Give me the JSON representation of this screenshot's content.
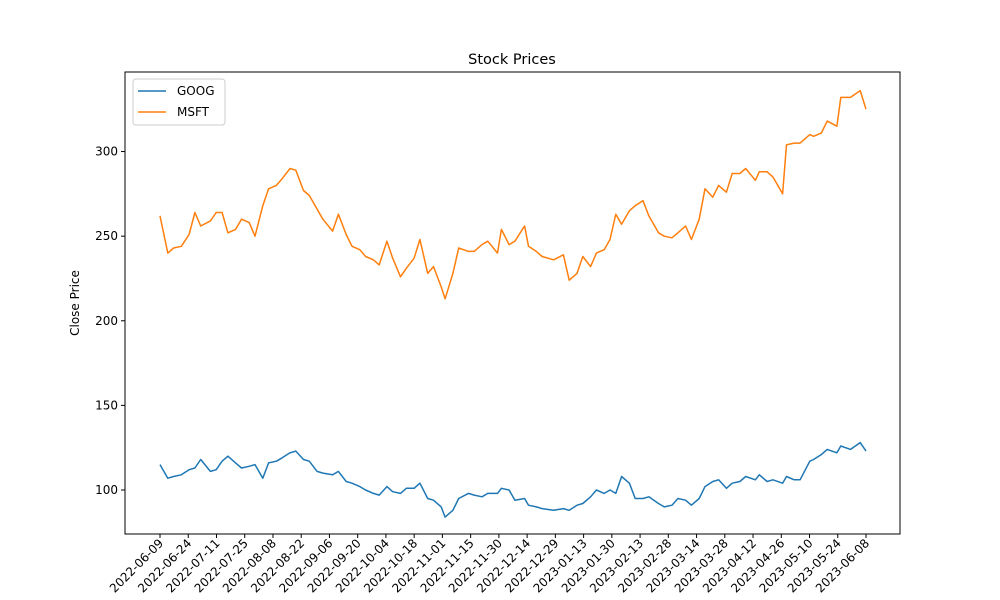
{
  "chart_data": {
    "type": "line",
    "title": "Stock Prices",
    "xlabel": "",
    "ylabel": "Close Price",
    "ylim": [
      74,
      347
    ],
    "yticks": [
      100,
      150,
      200,
      250,
      300
    ],
    "xtick_labels": [
      "2022-06-09",
      "2022-06-24",
      "2022-07-11",
      "2022-07-25",
      "2022-08-08",
      "2022-08-22",
      "2022-09-06",
      "2022-09-20",
      "2022-10-04",
      "2022-10-18",
      "2022-11-01",
      "2022-11-15",
      "2022-11-30",
      "2022-12-14",
      "2022-12-29",
      "2023-01-13",
      "2023-01-30",
      "2023-02-13",
      "2023-02-28",
      "2023-03-14",
      "2023-03-28",
      "2023-04-12",
      "2023-04-26",
      "2023-05-10",
      "2023-05-24",
      "2023-06-08"
    ],
    "legend": "top-left",
    "grid": false,
    "x_label_rotation": 45,
    "series": [
      {
        "name": "GOOG",
        "color": "#1f77b4",
        "values": [
          {
            "x": "2022-06-09",
            "y": 115
          },
          {
            "x": "2022-06-13",
            "y": 107
          },
          {
            "x": "2022-06-16",
            "y": 108
          },
          {
            "x": "2022-06-20",
            "y": 109
          },
          {
            "x": "2022-06-24",
            "y": 112
          },
          {
            "x": "2022-06-27",
            "y": 113
          },
          {
            "x": "2022-06-30",
            "y": 118
          },
          {
            "x": "2022-07-05",
            "y": 111
          },
          {
            "x": "2022-07-08",
            "y": 112
          },
          {
            "x": "2022-07-11",
            "y": 117
          },
          {
            "x": "2022-07-14",
            "y": 120
          },
          {
            "x": "2022-07-18",
            "y": 116
          },
          {
            "x": "2022-07-21",
            "y": 113
          },
          {
            "x": "2022-07-25",
            "y": 114
          },
          {
            "x": "2022-07-28",
            "y": 115
          },
          {
            "x": "2022-08-01",
            "y": 107
          },
          {
            "x": "2022-08-04",
            "y": 116
          },
          {
            "x": "2022-08-08",
            "y": 117
          },
          {
            "x": "2022-08-11",
            "y": 119
          },
          {
            "x": "2022-08-15",
            "y": 122
          },
          {
            "x": "2022-08-18",
            "y": 123
          },
          {
            "x": "2022-08-22",
            "y": 118
          },
          {
            "x": "2022-08-25",
            "y": 117
          },
          {
            "x": "2022-08-29",
            "y": 111
          },
          {
            "x": "2022-09-01",
            "y": 110
          },
          {
            "x": "2022-09-06",
            "y": 109
          },
          {
            "x": "2022-09-09",
            "y": 111
          },
          {
            "x": "2022-09-13",
            "y": 105
          },
          {
            "x": "2022-09-16",
            "y": 104
          },
          {
            "x": "2022-09-20",
            "y": 102
          },
          {
            "x": "2022-09-23",
            "y": 100
          },
          {
            "x": "2022-09-27",
            "y": 98
          },
          {
            "x": "2022-09-30",
            "y": 97
          },
          {
            "x": "2022-10-04",
            "y": 102
          },
          {
            "x": "2022-10-07",
            "y": 99
          },
          {
            "x": "2022-10-11",
            "y": 98
          },
          {
            "x": "2022-10-14",
            "y": 101
          },
          {
            "x": "2022-10-18",
            "y": 101
          },
          {
            "x": "2022-10-21",
            "y": 104
          },
          {
            "x": "2022-10-25",
            "y": 95
          },
          {
            "x": "2022-10-28",
            "y": 94
          },
          {
            "x": "2022-11-01",
            "y": 90
          },
          {
            "x": "2022-11-03",
            "y": 84
          },
          {
            "x": "2022-11-07",
            "y": 88
          },
          {
            "x": "2022-11-10",
            "y": 95
          },
          {
            "x": "2022-11-15",
            "y": 98
          },
          {
            "x": "2022-11-18",
            "y": 97
          },
          {
            "x": "2022-11-22",
            "y": 96
          },
          {
            "x": "2022-11-25",
            "y": 98
          },
          {
            "x": "2022-11-30",
            "y": 98
          },
          {
            "x": "2022-12-02",
            "y": 101
          },
          {
            "x": "2022-12-06",
            "y": 100
          },
          {
            "x": "2022-12-09",
            "y": 94
          },
          {
            "x": "2022-12-14",
            "y": 95
          },
          {
            "x": "2022-12-16",
            "y": 91
          },
          {
            "x": "2022-12-20",
            "y": 90
          },
          {
            "x": "2022-12-23",
            "y": 89
          },
          {
            "x": "2022-12-29",
            "y": 88
          },
          {
            "x": "2023-01-03",
            "y": 89
          },
          {
            "x": "2023-01-06",
            "y": 88
          },
          {
            "x": "2023-01-10",
            "y": 91
          },
          {
            "x": "2023-01-13",
            "y": 92
          },
          {
            "x": "2023-01-17",
            "y": 96
          },
          {
            "x": "2023-01-20",
            "y": 100
          },
          {
            "x": "2023-01-24",
            "y": 98
          },
          {
            "x": "2023-01-27",
            "y": 100
          },
          {
            "x": "2023-01-30",
            "y": 98
          },
          {
            "x": "2023-02-02",
            "y": 108
          },
          {
            "x": "2023-02-06",
            "y": 104
          },
          {
            "x": "2023-02-09",
            "y": 95
          },
          {
            "x": "2023-02-13",
            "y": 95
          },
          {
            "x": "2023-02-16",
            "y": 96
          },
          {
            "x": "2023-02-21",
            "y": 92
          },
          {
            "x": "2023-02-24",
            "y": 90
          },
          {
            "x": "2023-02-28",
            "y": 91
          },
          {
            "x": "2023-03-03",
            "y": 95
          },
          {
            "x": "2023-03-07",
            "y": 94
          },
          {
            "x": "2023-03-10",
            "y": 91
          },
          {
            "x": "2023-03-14",
            "y": 95
          },
          {
            "x": "2023-03-17",
            "y": 102
          },
          {
            "x": "2023-03-21",
            "y": 105
          },
          {
            "x": "2023-03-24",
            "y": 106
          },
          {
            "x": "2023-03-28",
            "y": 101
          },
          {
            "x": "2023-03-31",
            "y": 104
          },
          {
            "x": "2023-04-04",
            "y": 105
          },
          {
            "x": "2023-04-07",
            "y": 108
          },
          {
            "x": "2023-04-12",
            "y": 106
          },
          {
            "x": "2023-04-14",
            "y": 109
          },
          {
            "x": "2023-04-18",
            "y": 105
          },
          {
            "x": "2023-04-21",
            "y": 106
          },
          {
            "x": "2023-04-26",
            "y": 104
          },
          {
            "x": "2023-04-28",
            "y": 108
          },
          {
            "x": "2023-05-02",
            "y": 106
          },
          {
            "x": "2023-05-05",
            "y": 106
          },
          {
            "x": "2023-05-10",
            "y": 117
          },
          {
            "x": "2023-05-12",
            "y": 118
          },
          {
            "x": "2023-05-16",
            "y": 121
          },
          {
            "x": "2023-05-19",
            "y": 124
          },
          {
            "x": "2023-05-24",
            "y": 122
          },
          {
            "x": "2023-05-26",
            "y": 126
          },
          {
            "x": "2023-05-31",
            "y": 124
          },
          {
            "x": "2023-06-05",
            "y": 128
          },
          {
            "x": "2023-06-08",
            "y": 123
          }
        ]
      },
      {
        "name": "MSFT",
        "color": "#ff7f0e",
        "values": [
          {
            "x": "2022-06-09",
            "y": 262
          },
          {
            "x": "2022-06-13",
            "y": 240
          },
          {
            "x": "2022-06-16",
            "y": 243
          },
          {
            "x": "2022-06-20",
            "y": 244
          },
          {
            "x": "2022-06-24",
            "y": 251
          },
          {
            "x": "2022-06-27",
            "y": 264
          },
          {
            "x": "2022-06-30",
            "y": 256
          },
          {
            "x": "2022-07-05",
            "y": 259
          },
          {
            "x": "2022-07-08",
            "y": 264
          },
          {
            "x": "2022-07-11",
            "y": 264
          },
          {
            "x": "2022-07-14",
            "y": 252
          },
          {
            "x": "2022-07-18",
            "y": 254
          },
          {
            "x": "2022-07-21",
            "y": 260
          },
          {
            "x": "2022-07-25",
            "y": 258
          },
          {
            "x": "2022-07-28",
            "y": 250
          },
          {
            "x": "2022-08-01",
            "y": 268
          },
          {
            "x": "2022-08-04",
            "y": 278
          },
          {
            "x": "2022-08-08",
            "y": 280
          },
          {
            "x": "2022-08-11",
            "y": 284
          },
          {
            "x": "2022-08-15",
            "y": 290
          },
          {
            "x": "2022-08-18",
            "y": 289
          },
          {
            "x": "2022-08-22",
            "y": 277
          },
          {
            "x": "2022-08-25",
            "y": 274
          },
          {
            "x": "2022-08-29",
            "y": 266
          },
          {
            "x": "2022-09-01",
            "y": 260
          },
          {
            "x": "2022-09-06",
            "y": 253
          },
          {
            "x": "2022-09-09",
            "y": 263
          },
          {
            "x": "2022-09-13",
            "y": 251
          },
          {
            "x": "2022-09-16",
            "y": 244
          },
          {
            "x": "2022-09-20",
            "y": 242
          },
          {
            "x": "2022-09-23",
            "y": 238
          },
          {
            "x": "2022-09-27",
            "y": 236
          },
          {
            "x": "2022-09-30",
            "y": 233
          },
          {
            "x": "2022-10-04",
            "y": 247
          },
          {
            "x": "2022-10-07",
            "y": 237
          },
          {
            "x": "2022-10-11",
            "y": 226
          },
          {
            "x": "2022-10-14",
            "y": 231
          },
          {
            "x": "2022-10-18",
            "y": 237
          },
          {
            "x": "2022-10-21",
            "y": 248
          },
          {
            "x": "2022-10-25",
            "y": 228
          },
          {
            "x": "2022-10-28",
            "y": 232
          },
          {
            "x": "2022-11-01",
            "y": 220
          },
          {
            "x": "2022-11-03",
            "y": 213
          },
          {
            "x": "2022-11-07",
            "y": 228
          },
          {
            "x": "2022-11-10",
            "y": 243
          },
          {
            "x": "2022-11-15",
            "y": 241
          },
          {
            "x": "2022-11-18",
            "y": 241
          },
          {
            "x": "2022-11-22",
            "y": 245
          },
          {
            "x": "2022-11-25",
            "y": 247
          },
          {
            "x": "2022-11-30",
            "y": 240
          },
          {
            "x": "2022-12-02",
            "y": 254
          },
          {
            "x": "2022-12-06",
            "y": 245
          },
          {
            "x": "2022-12-09",
            "y": 247
          },
          {
            "x": "2022-12-14",
            "y": 256
          },
          {
            "x": "2022-12-16",
            "y": 244
          },
          {
            "x": "2022-12-20",
            "y": 241
          },
          {
            "x": "2022-12-23",
            "y": 238
          },
          {
            "x": "2022-12-29",
            "y": 236
          },
          {
            "x": "2023-01-03",
            "y": 239
          },
          {
            "x": "2023-01-06",
            "y": 224
          },
          {
            "x": "2023-01-10",
            "y": 228
          },
          {
            "x": "2023-01-13",
            "y": 238
          },
          {
            "x": "2023-01-17",
            "y": 232
          },
          {
            "x": "2023-01-20",
            "y": 240
          },
          {
            "x": "2023-01-24",
            "y": 242
          },
          {
            "x": "2023-01-27",
            "y": 248
          },
          {
            "x": "2023-01-30",
            "y": 263
          },
          {
            "x": "2023-02-02",
            "y": 257
          },
          {
            "x": "2023-02-06",
            "y": 265
          },
          {
            "x": "2023-02-09",
            "y": 268
          },
          {
            "x": "2023-02-13",
            "y": 271
          },
          {
            "x": "2023-02-16",
            "y": 262
          },
          {
            "x": "2023-02-21",
            "y": 252
          },
          {
            "x": "2023-02-24",
            "y": 250
          },
          {
            "x": "2023-02-28",
            "y": 249
          },
          {
            "x": "2023-03-03",
            "y": 252
          },
          {
            "x": "2023-03-07",
            "y": 256
          },
          {
            "x": "2023-03-10",
            "y": 248
          },
          {
            "x": "2023-03-14",
            "y": 260
          },
          {
            "x": "2023-03-17",
            "y": 278
          },
          {
            "x": "2023-03-21",
            "y": 273
          },
          {
            "x": "2023-03-24",
            "y": 280
          },
          {
            "x": "2023-03-28",
            "y": 276
          },
          {
            "x": "2023-03-31",
            "y": 287
          },
          {
            "x": "2023-04-04",
            "y": 287
          },
          {
            "x": "2023-04-07",
            "y": 290
          },
          {
            "x": "2023-04-12",
            "y": 283
          },
          {
            "x": "2023-04-14",
            "y": 288
          },
          {
            "x": "2023-04-18",
            "y": 288
          },
          {
            "x": "2023-04-21",
            "y": 285
          },
          {
            "x": "2023-04-26",
            "y": 275
          },
          {
            "x": "2023-04-28",
            "y": 304
          },
          {
            "x": "2023-05-02",
            "y": 305
          },
          {
            "x": "2023-05-05",
            "y": 305
          },
          {
            "x": "2023-05-10",
            "y": 310
          },
          {
            "x": "2023-05-12",
            "y": 309
          },
          {
            "x": "2023-05-16",
            "y": 311
          },
          {
            "x": "2023-05-19",
            "y": 318
          },
          {
            "x": "2023-05-24",
            "y": 315
          },
          {
            "x": "2023-05-26",
            "y": 332
          },
          {
            "x": "2023-05-31",
            "y": 332
          },
          {
            "x": "2023-06-05",
            "y": 336
          },
          {
            "x": "2023-06-08",
            "y": 325
          }
        ]
      }
    ]
  }
}
